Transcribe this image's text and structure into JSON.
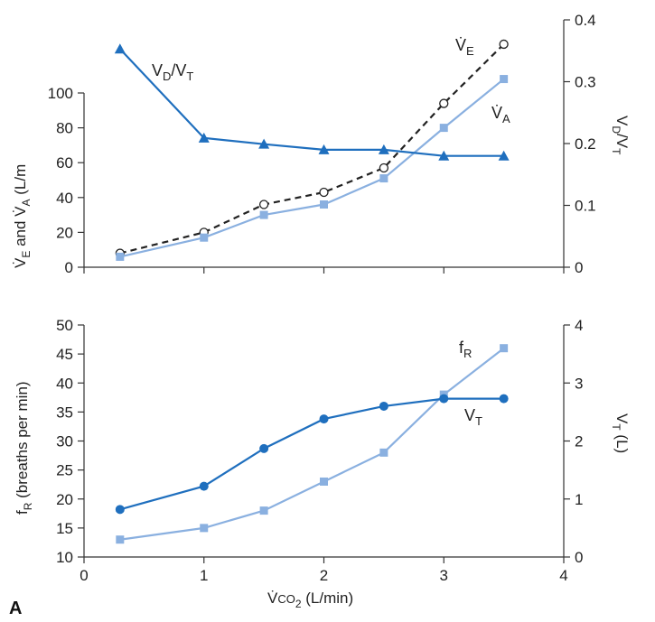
{
  "panel_letter": "A",
  "colors": {
    "dark_blue": "#1f6fbe",
    "light_blue": "#8ab0e0",
    "black": "#222222"
  },
  "chart_data": [
    {
      "type": "line",
      "x": [
        0.3,
        1,
        1.5,
        2,
        2.5,
        3,
        3.5
      ],
      "xlim": [
        0,
        4
      ],
      "y_left": {
        "label": "V̇E and V̇A (L/m",
        "ylim": [
          0,
          100
        ],
        "ticks": [
          "0",
          "20",
          "40",
          "60",
          "80",
          "100"
        ]
      },
      "y_right": {
        "label": "VD/VT",
        "ylim": [
          0,
          0.4
        ],
        "ticks": [
          "0",
          "0.1",
          "0.2",
          "0.3",
          "0.4"
        ]
      },
      "series": [
        {
          "name": "V̇E",
          "axis": "left",
          "style": "dashed-open-circle",
          "values": [
            8,
            20,
            36,
            43,
            57,
            94,
            128
          ]
        },
        {
          "name": "V̇A",
          "axis": "left",
          "style": "solid-square",
          "values": [
            6,
            17,
            30,
            36,
            51,
            80,
            108
          ]
        },
        {
          "name": "VD/VT",
          "axis": "right",
          "style": "solid-triangle",
          "values": [
            0.353,
            0.209,
            0.199,
            0.19,
            0.19,
            0.18,
            0.18
          ]
        }
      ]
    },
    {
      "type": "line",
      "x": [
        0.3,
        1,
        1.5,
        2,
        2.5,
        3,
        3.5
      ],
      "xlim": [
        0,
        4
      ],
      "xlabel": "V̇CO2 (L/min)",
      "xticks": [
        "0",
        "1",
        "2",
        "3",
        "4"
      ],
      "y_left": {
        "label": "fR (breaths per min)",
        "ylim": [
          10,
          50
        ],
        "ticks": [
          "10",
          "15",
          "20",
          "25",
          "30",
          "35",
          "40",
          "45",
          "50"
        ]
      },
      "y_right": {
        "label": "VT (L)",
        "ylim": [
          0,
          4
        ],
        "ticks": [
          "0",
          "1",
          "2",
          "3",
          "4"
        ]
      },
      "series": [
        {
          "name": "fR",
          "axis": "left",
          "style": "solid-square",
          "values": [
            13,
            15,
            18,
            23,
            28,
            38,
            46
          ]
        },
        {
          "name": "VT",
          "axis": "right",
          "style": "solid-circle",
          "values": [
            0.82,
            1.22,
            1.87,
            2.38,
            2.6,
            2.73,
            2.73
          ]
        }
      ]
    }
  ]
}
